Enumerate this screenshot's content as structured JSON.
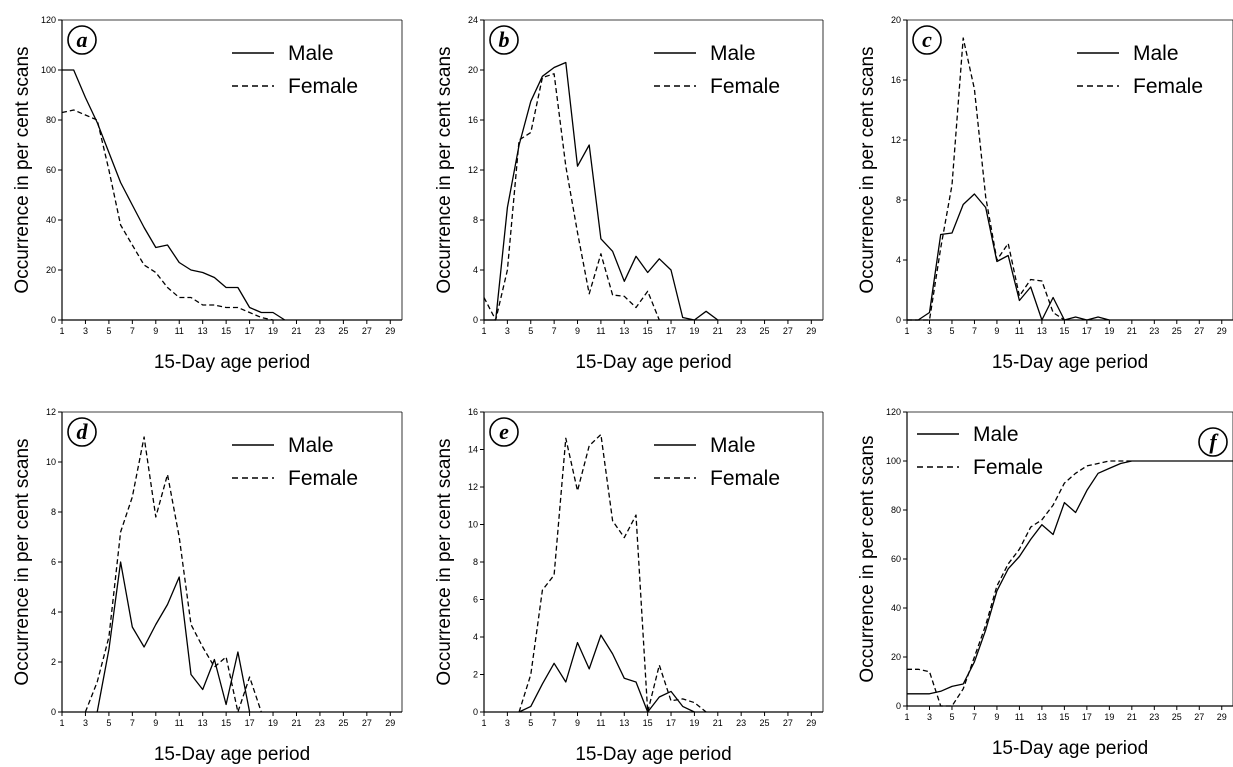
{
  "chart_data": [
    {
      "type": "line",
      "panel_label": "a",
      "xlabel": "15-Day age period",
      "ylabel": "Occurrence in per cent scans",
      "xlim": [
        1,
        30
      ],
      "ylim": [
        0,
        120
      ],
      "xticks": [
        1,
        3,
        5,
        7,
        9,
        11,
        13,
        15,
        17,
        19,
        21,
        23,
        25,
        27,
        29
      ],
      "yticks": [
        0,
        20,
        40,
        60,
        80,
        100,
        120
      ],
      "legend_position": "top-right",
      "series": [
        {
          "name": "Male",
          "style": "solid",
          "x": [
            1,
            2,
            3,
            4,
            5,
            6,
            7,
            8,
            9,
            10,
            11,
            12,
            13,
            14,
            15,
            16,
            17,
            18,
            19,
            20
          ],
          "values": [
            100,
            100,
            89,
            79,
            67,
            55,
            46,
            37,
            29,
            30,
            23,
            20,
            19,
            17,
            13,
            13,
            5,
            3,
            3,
            0
          ]
        },
        {
          "name": "Female",
          "style": "dashed",
          "x": [
            1,
            2,
            3,
            4,
            5,
            6,
            7,
            8,
            9,
            10,
            11,
            12,
            13,
            14,
            15,
            16,
            17,
            18,
            19
          ],
          "values": [
            83,
            84,
            82,
            80,
            60,
            38,
            30,
            22,
            19,
            13,
            9,
            9,
            6,
            6,
            5,
            5,
            3,
            1,
            0
          ]
        }
      ]
    },
    {
      "type": "line",
      "panel_label": "b",
      "xlabel": "15-Day age period",
      "ylabel": "Occurrence in per cent scans",
      "xlim": [
        1,
        30
      ],
      "ylim": [
        0,
        24
      ],
      "xticks": [
        1,
        3,
        5,
        7,
        9,
        11,
        13,
        15,
        17,
        19,
        21,
        23,
        25,
        27,
        29
      ],
      "yticks": [
        0,
        4,
        8,
        12,
        16,
        20,
        24
      ],
      "legend_position": "top-right",
      "series": [
        {
          "name": "Male",
          "style": "solid",
          "x": [
            1,
            2,
            3,
            4,
            5,
            6,
            7,
            8,
            9,
            10,
            11,
            12,
            13,
            14,
            15,
            16,
            17,
            18,
            19,
            20,
            21
          ],
          "values": [
            0,
            0,
            9,
            14,
            17.5,
            19.5,
            20.2,
            20.6,
            12.3,
            14,
            6.5,
            5.5,
            3.1,
            5.1,
            3.8,
            4.9,
            4,
            0.2,
            0,
            0.7,
            0
          ]
        },
        {
          "name": "Female",
          "style": "dashed",
          "x": [
            1,
            2,
            3,
            4,
            5,
            6,
            7,
            8,
            9,
            10,
            11,
            12,
            13,
            14,
            15,
            16
          ],
          "values": [
            1.8,
            0,
            4,
            14.4,
            15,
            19.4,
            19.7,
            12.3,
            7,
            2.1,
            5.3,
            2,
            1.9,
            1,
            2.3,
            0
          ]
        }
      ]
    },
    {
      "type": "line",
      "panel_label": "c",
      "xlabel": "15-Day age period",
      "ylabel": "Occurrence in per cent scans",
      "xlim": [
        1,
        30
      ],
      "ylim": [
        0,
        20
      ],
      "xticks": [
        1,
        3,
        5,
        7,
        9,
        11,
        13,
        15,
        17,
        19,
        21,
        23,
        25,
        27,
        29
      ],
      "yticks": [
        0,
        4,
        8,
        12,
        16,
        20
      ],
      "legend_position": "top-right",
      "series": [
        {
          "name": "Male",
          "style": "solid",
          "x": [
            1,
            2,
            3,
            4,
            5,
            6,
            7,
            8,
            9,
            10,
            11,
            12,
            13,
            14,
            15,
            16,
            17,
            18,
            19
          ],
          "values": [
            0,
            0,
            0.5,
            5.7,
            5.8,
            7.7,
            8.4,
            7.5,
            3.9,
            4.3,
            1.3,
            2.2,
            0,
            1.5,
            0,
            0.2,
            0,
            0.2,
            0
          ]
        },
        {
          "name": "Female",
          "style": "dashed",
          "x": [
            1,
            2,
            3,
            4,
            5,
            6,
            7,
            8,
            9,
            10,
            11,
            12,
            13,
            14,
            15
          ],
          "values": [
            0,
            0,
            0,
            4.8,
            9,
            18.8,
            15.4,
            8.2,
            4,
            5.1,
            1.6,
            2.7,
            2.6,
            0.5,
            0
          ]
        }
      ]
    },
    {
      "type": "line",
      "panel_label": "d",
      "xlabel": "15-Day age period",
      "ylabel": "Occurrence in per cent scans",
      "xlim": [
        1,
        30
      ],
      "ylim": [
        0,
        12
      ],
      "xticks": [
        1,
        3,
        5,
        7,
        9,
        11,
        13,
        15,
        17,
        19,
        21,
        23,
        25,
        27,
        29
      ],
      "yticks": [
        0,
        2,
        4,
        6,
        8,
        10,
        12
      ],
      "legend_position": "top-right",
      "series": [
        {
          "name": "Male",
          "style": "solid",
          "x": [
            4,
            5,
            6,
            7,
            8,
            9,
            10,
            11,
            12,
            13,
            14,
            15,
            16,
            17
          ],
          "values": [
            0,
            2.5,
            6,
            3.4,
            2.6,
            3.5,
            4.3,
            5.4,
            1.5,
            0.9,
            2.1,
            0.3,
            2.4,
            0
          ]
        },
        {
          "name": "Female",
          "style": "dashed",
          "x": [
            3,
            4,
            5,
            6,
            7,
            8,
            9,
            10,
            11,
            12,
            13,
            14,
            15,
            16,
            17,
            18
          ],
          "values": [
            0,
            1.2,
            3,
            7.2,
            8.6,
            11,
            7.8,
            9.5,
            7,
            3.5,
            2.6,
            1.8,
            2.2,
            0,
            1.4,
            0
          ]
        }
      ]
    },
    {
      "type": "line",
      "panel_label": "e",
      "xlabel": "15-Day age period",
      "ylabel": "Occurrence in per cent scans",
      "xlim": [
        1,
        30
      ],
      "ylim": [
        0,
        16
      ],
      "xticks": [
        1,
        3,
        5,
        7,
        9,
        11,
        13,
        15,
        17,
        19,
        21,
        23,
        25,
        27,
        29
      ],
      "yticks": [
        0,
        2,
        4,
        6,
        8,
        10,
        12,
        14,
        16
      ],
      "legend_position": "top-right",
      "series": [
        {
          "name": "Male",
          "style": "solid",
          "x": [
            4,
            5,
            6,
            7,
            8,
            9,
            10,
            11,
            12,
            13,
            14,
            15,
            16,
            17,
            18,
            19
          ],
          "values": [
            0,
            0.3,
            1.5,
            2.6,
            1.6,
            3.7,
            2.3,
            4.1,
            3.1,
            1.8,
            1.6,
            0,
            0.8,
            1.1,
            0.3,
            0
          ]
        },
        {
          "name": "Female",
          "style": "dashed",
          "x": [
            4,
            5,
            6,
            7,
            8,
            9,
            10,
            11,
            12,
            13,
            14,
            15,
            16,
            17,
            18,
            19,
            20
          ],
          "values": [
            0,
            2,
            6.5,
            7.3,
            14.6,
            11.8,
            14.2,
            14.8,
            10.2,
            9.3,
            10.5,
            0,
            2.5,
            0.6,
            0.7,
            0.5,
            0
          ]
        }
      ]
    },
    {
      "type": "line",
      "panel_label": "f",
      "xlabel": "15-Day age period",
      "ylabel": "Occurrence in per cent scans",
      "xlim": [
        1,
        30
      ],
      "ylim": [
        0,
        120
      ],
      "xticks": [
        1,
        3,
        5,
        7,
        9,
        11,
        13,
        15,
        17,
        19,
        21,
        23,
        25,
        27,
        29
      ],
      "yticks": [
        0,
        20,
        40,
        60,
        80,
        100,
        120
      ],
      "legend_position": "top-left",
      "series": [
        {
          "name": "Male",
          "style": "solid",
          "x": [
            1,
            2,
            3,
            4,
            5,
            6,
            7,
            8,
            9,
            10,
            11,
            12,
            13,
            14,
            15,
            16,
            17,
            18,
            19,
            20,
            21,
            22,
            23,
            24,
            25,
            26,
            27,
            28,
            29,
            30
          ],
          "values": [
            5,
            5,
            5,
            6,
            8,
            9,
            18,
            31,
            47,
            56,
            61,
            68,
            74,
            70,
            83,
            79,
            88,
            95,
            97,
            99,
            100,
            100,
            100,
            100,
            100,
            100,
            100,
            100,
            100,
            100
          ]
        },
        {
          "name": "Female",
          "style": "dashed",
          "x": [
            1,
            2,
            3,
            4,
            5,
            6,
            7,
            8,
            9,
            10,
            11,
            12,
            13,
            14,
            15,
            16,
            17,
            18,
            19,
            20,
            21
          ],
          "values": [
            15,
            15,
            14,
            0,
            0,
            7,
            20,
            33,
            49,
            58,
            64,
            73,
            76,
            82,
            91,
            95,
            98,
            99,
            100,
            100,
            100
          ]
        }
      ]
    }
  ]
}
